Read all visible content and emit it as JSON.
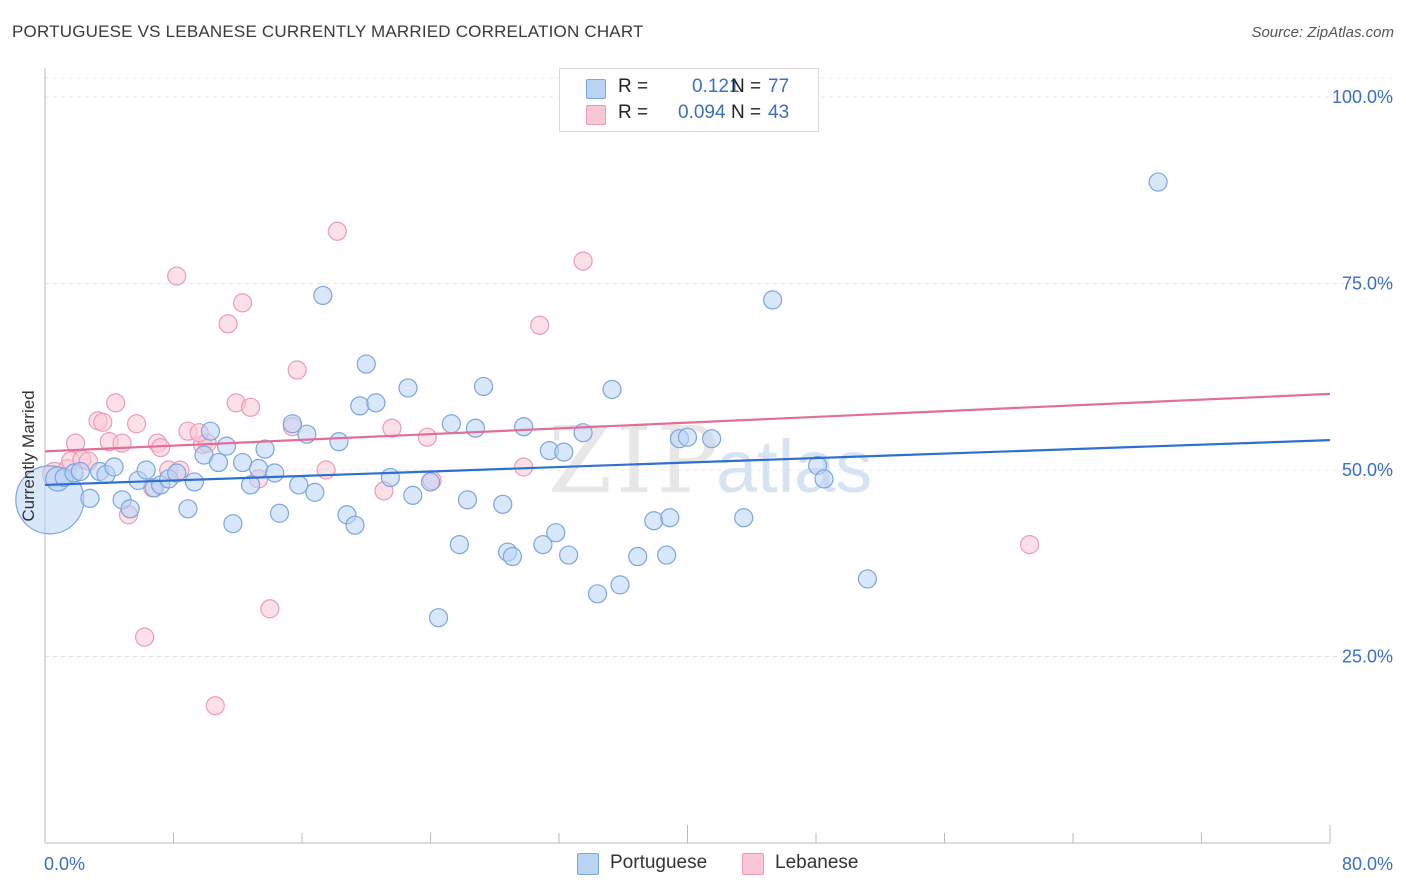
{
  "header": {
    "title": "PORTUGUESE VS LEBANESE CURRENTLY MARRIED CORRELATION CHART",
    "source": "Source: ZipAtlas.com"
  },
  "legend": {
    "rows": [
      {
        "r_label": "R =",
        "r_value": "0.121",
        "n_label": "N =",
        "n_value": "77"
      },
      {
        "r_label": "R =",
        "r_value": "0.094",
        "n_label": "N =",
        "n_value": "43"
      }
    ]
  },
  "bottom_legend": {
    "portuguese": "Portuguese",
    "lebanese": "Lebanese"
  },
  "colors": {
    "portuguese_fill": "#b9d3f5",
    "portuguese_stroke": "#7aa6e0",
    "portuguese_line": "#2f6fd0",
    "lebanese_fill": "#f9c6d6",
    "lebanese_stroke": "#ee9ab4",
    "lebanese_line": "#e46d98",
    "axis_text": "#3a6fc4",
    "grid": "#e4e4e4"
  },
  "watermark": {
    "zip": "ZIP",
    "atlas": "atlas"
  },
  "chart_data": {
    "type": "scatter",
    "title": "PORTUGUESE VS LEBANESE CURRENTLY MARRIED CORRELATION CHART",
    "xlabel": "",
    "ylabel": "Currently Married",
    "xlim": [
      0,
      80
    ],
    "ylim": [
      0,
      105
    ],
    "x_tick_labels": [
      "0.0%",
      "80.0%"
    ],
    "y_ticks": [
      25,
      50,
      75,
      100
    ],
    "y_tick_labels": [
      "25.0%",
      "50.0%",
      "75.0%",
      "100.0%"
    ],
    "grid": "horizontal dashed",
    "legend_position": "top-center",
    "series": [
      {
        "name": "Portuguese",
        "color": "#7aa6e0",
        "trend": {
          "x": [
            0,
            80
          ],
          "y": [
            48.0,
            54.0
          ]
        },
        "points": [
          [
            0.3,
            46.0,
            34
          ],
          [
            0.8,
            48.8,
            12
          ],
          [
            1.2,
            49.0,
            9
          ],
          [
            1.8,
            49.6,
            9
          ],
          [
            2.2,
            49.8,
            9
          ],
          [
            2.8,
            46.2,
            9
          ],
          [
            3.4,
            49.8,
            9
          ],
          [
            3.8,
            49.4,
            9
          ],
          [
            4.3,
            50.4,
            9
          ],
          [
            4.8,
            46.0,
            9
          ],
          [
            5.3,
            44.8,
            9
          ],
          [
            5.8,
            48.6,
            9
          ],
          [
            6.3,
            50.0,
            9
          ],
          [
            6.8,
            47.6,
            9
          ],
          [
            7.2,
            48.0,
            9
          ],
          [
            7.7,
            48.8,
            9
          ],
          [
            8.2,
            49.6,
            9
          ],
          [
            8.9,
            44.8,
            9
          ],
          [
            9.3,
            48.4,
            9
          ],
          [
            9.9,
            52.0,
            9
          ],
          [
            10.3,
            55.2,
            9
          ],
          [
            10.8,
            51.0,
            9
          ],
          [
            11.3,
            53.2,
            9
          ],
          [
            11.7,
            42.8,
            9
          ],
          [
            12.3,
            51.0,
            9
          ],
          [
            12.8,
            48.0,
            9
          ],
          [
            13.3,
            50.2,
            9
          ],
          [
            13.7,
            52.8,
            9
          ],
          [
            14.3,
            49.6,
            9
          ],
          [
            14.6,
            44.2,
            9
          ],
          [
            15.4,
            56.2,
            9
          ],
          [
            15.8,
            48.0,
            9
          ],
          [
            16.3,
            54.8,
            9
          ],
          [
            16.8,
            47.0,
            9
          ],
          [
            17.3,
            73.4,
            9
          ],
          [
            18.3,
            53.8,
            9
          ],
          [
            18.8,
            44.0,
            9
          ],
          [
            19.3,
            42.6,
            9
          ],
          [
            19.6,
            58.6,
            9
          ],
          [
            20.0,
            64.2,
            9
          ],
          [
            20.6,
            59.0,
            9
          ],
          [
            21.5,
            49.0,
            9
          ],
          [
            22.6,
            61.0,
            9
          ],
          [
            22.9,
            46.6,
            9
          ],
          [
            24.0,
            48.4,
            9
          ],
          [
            25.3,
            56.2,
            9
          ],
          [
            25.8,
            40.0,
            9
          ],
          [
            26.3,
            46.0,
            9
          ],
          [
            26.8,
            55.6,
            9
          ],
          [
            27.3,
            61.2,
            9
          ],
          [
            28.5,
            45.4,
            9
          ],
          [
            28.8,
            39.0,
            9
          ],
          [
            29.1,
            38.4,
            9
          ],
          [
            29.8,
            55.8,
            9
          ],
          [
            31.0,
            40.0,
            9
          ],
          [
            31.4,
            52.6,
            9
          ],
          [
            31.8,
            41.6,
            9
          ],
          [
            32.3,
            52.4,
            9
          ],
          [
            32.6,
            38.6,
            9
          ],
          [
            33.5,
            55.0,
            9
          ],
          [
            34.4,
            33.4,
            9
          ],
          [
            35.3,
            60.8,
            9
          ],
          [
            35.8,
            34.6,
            9
          ],
          [
            36.9,
            38.4,
            9
          ],
          [
            37.9,
            43.2,
            9
          ],
          [
            38.7,
            38.6,
            9
          ],
          [
            38.9,
            43.6,
            9
          ],
          [
            39.5,
            54.2,
            9
          ],
          [
            40.0,
            54.4,
            9
          ],
          [
            41.5,
            54.2,
            9
          ],
          [
            43.5,
            43.6,
            9
          ],
          [
            45.3,
            72.8,
            9
          ],
          [
            48.1,
            50.6,
            9
          ],
          [
            48.5,
            48.8,
            9
          ],
          [
            51.2,
            35.4,
            9
          ],
          [
            69.3,
            88.6,
            9
          ],
          [
            24.5,
            30.2,
            9
          ]
        ]
      },
      {
        "name": "Lebanese",
        "color": "#ee9ab4",
        "trend": {
          "x": [
            0,
            80
          ],
          "y": [
            52.5,
            60.2
          ]
        },
        "points": [
          [
            0.6,
            49.4,
            12
          ],
          [
            1.4,
            50.2,
            9
          ],
          [
            1.6,
            51.2,
            9
          ],
          [
            1.9,
            53.6,
            9
          ],
          [
            2.3,
            51.4,
            9
          ],
          [
            2.7,
            51.2,
            9
          ],
          [
            3.3,
            56.6,
            9
          ],
          [
            3.6,
            56.4,
            9
          ],
          [
            4.0,
            53.8,
            9
          ],
          [
            4.4,
            59.0,
            9
          ],
          [
            4.8,
            53.6,
            9
          ],
          [
            5.2,
            44.0,
            9
          ],
          [
            5.7,
            56.2,
            9
          ],
          [
            6.2,
            27.6,
            9
          ],
          [
            6.7,
            47.6,
            9
          ],
          [
            7.0,
            53.6,
            9
          ],
          [
            7.2,
            53.0,
            9
          ],
          [
            7.7,
            50.0,
            9
          ],
          [
            8.2,
            76.0,
            9
          ],
          [
            8.4,
            50.0,
            9
          ],
          [
            8.9,
            55.2,
            9
          ],
          [
            9.8,
            53.4,
            9
          ],
          [
            10.1,
            53.6,
            9
          ],
          [
            10.6,
            18.4,
            9
          ],
          [
            11.4,
            69.6,
            9
          ],
          [
            11.9,
            59.0,
            9
          ],
          [
            12.3,
            72.4,
            9
          ],
          [
            12.8,
            58.4,
            9
          ],
          [
            13.3,
            48.8,
            9
          ],
          [
            14.0,
            31.4,
            9
          ],
          [
            15.4,
            55.8,
            9
          ],
          [
            15.7,
            63.4,
            9
          ],
          [
            17.5,
            50.0,
            9
          ],
          [
            18.2,
            82.0,
            9
          ],
          [
            21.1,
            47.2,
            9
          ],
          [
            21.6,
            55.6,
            9
          ],
          [
            23.8,
            54.4,
            9
          ],
          [
            24.1,
            48.6,
            9
          ],
          [
            29.8,
            50.4,
            9
          ],
          [
            30.8,
            69.4,
            9
          ],
          [
            33.5,
            78.0,
            9
          ],
          [
            61.3,
            40.0,
            9
          ],
          [
            9.6,
            55.0,
            9
          ]
        ]
      }
    ]
  }
}
